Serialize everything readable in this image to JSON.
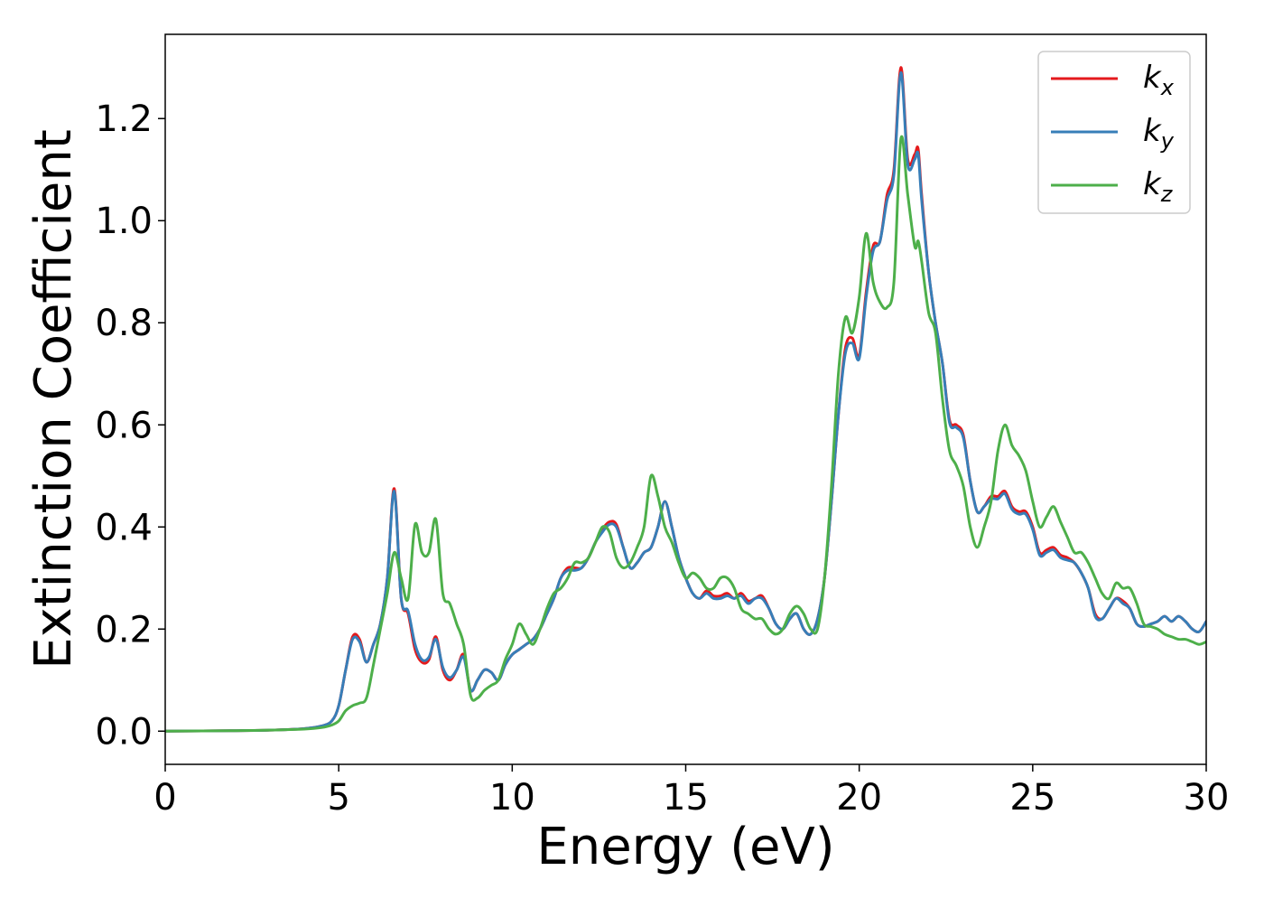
{
  "chart_data": {
    "type": "line",
    "title": "",
    "xlabel": "Energy (eV)",
    "ylabel": "Extinction Coefficient",
    "xlim": [
      0,
      30
    ],
    "ylim": [
      -0.065,
      1.365
    ],
    "xticks": [
      0,
      5,
      10,
      15,
      20,
      25,
      30
    ],
    "xtick_labels": [
      "0",
      "5",
      "10",
      "15",
      "20",
      "25",
      "30"
    ],
    "yticks": [
      0.0,
      0.2,
      0.4,
      0.6,
      0.8,
      1.0,
      1.2
    ],
    "ytick_labels": [
      "0.0",
      "0.2",
      "0.4",
      "0.6",
      "0.8",
      "1.0",
      "1.2"
    ],
    "grid": false,
    "legend_position": "top-right",
    "series": [
      {
        "name": "k_x",
        "label_base": "k",
        "label_sub": "x",
        "color": "#e41a1c",
        "x": [
          0,
          2,
          3,
          4,
          4.5,
          4.8,
          5.0,
          5.2,
          5.4,
          5.6,
          5.8,
          6.0,
          6.2,
          6.4,
          6.6,
          6.8,
          7.0,
          7.2,
          7.4,
          7.6,
          7.8,
          8.0,
          8.2,
          8.4,
          8.6,
          8.8,
          9.0,
          9.2,
          9.4,
          9.6,
          9.8,
          10.0,
          10.2,
          10.4,
          10.6,
          10.8,
          11.0,
          11.2,
          11.4,
          11.6,
          11.8,
          12.0,
          12.2,
          12.4,
          12.6,
          12.8,
          13.0,
          13.2,
          13.4,
          13.6,
          13.8,
          14.0,
          14.2,
          14.4,
          14.6,
          14.8,
          15.0,
          15.2,
          15.4,
          15.6,
          15.8,
          16.0,
          16.2,
          16.4,
          16.6,
          16.8,
          17.0,
          17.2,
          17.4,
          17.6,
          17.8,
          18.0,
          18.2,
          18.4,
          18.6,
          18.8,
          19.0,
          19.2,
          19.4,
          19.6,
          19.8,
          20.0,
          20.2,
          20.4,
          20.6,
          20.8,
          21.0,
          21.2,
          21.4,
          21.6,
          21.7,
          21.8,
          22.0,
          22.2,
          22.4,
          22.6,
          22.8,
          23.0,
          23.2,
          23.4,
          23.6,
          23.8,
          24.0,
          24.2,
          24.4,
          24.6,
          24.8,
          25.0,
          25.2,
          25.4,
          25.6,
          25.8,
          26.0,
          26.2,
          26.4,
          26.6,
          26.8,
          27.0,
          27.2,
          27.4,
          27.6,
          27.8,
          28.0,
          28.2,
          28.4,
          28.6,
          28.8,
          29.0,
          29.2,
          29.4,
          29.6,
          29.8,
          30.0
        ],
        "y": [
          0.0,
          0.001,
          0.002,
          0.005,
          0.01,
          0.02,
          0.05,
          0.12,
          0.185,
          0.18,
          0.135,
          0.17,
          0.21,
          0.3,
          0.475,
          0.26,
          0.23,
          0.16,
          0.135,
          0.14,
          0.185,
          0.12,
          0.1,
          0.12,
          0.15,
          0.08,
          0.1,
          0.12,
          0.115,
          0.1,
          0.13,
          0.15,
          0.16,
          0.17,
          0.18,
          0.2,
          0.23,
          0.26,
          0.3,
          0.32,
          0.32,
          0.32,
          0.34,
          0.37,
          0.395,
          0.41,
          0.405,
          0.36,
          0.32,
          0.33,
          0.35,
          0.36,
          0.4,
          0.45,
          0.4,
          0.34,
          0.3,
          0.27,
          0.26,
          0.275,
          0.265,
          0.265,
          0.27,
          0.26,
          0.27,
          0.255,
          0.26,
          0.265,
          0.24,
          0.21,
          0.2,
          0.22,
          0.23,
          0.2,
          0.19,
          0.22,
          0.3,
          0.45,
          0.62,
          0.75,
          0.77,
          0.735,
          0.86,
          0.95,
          0.96,
          1.05,
          1.1,
          1.3,
          1.12,
          1.13,
          1.14,
          1.05,
          0.9,
          0.8,
          0.72,
          0.61,
          0.6,
          0.58,
          0.49,
          0.43,
          0.44,
          0.46,
          0.46,
          0.47,
          0.44,
          0.43,
          0.43,
          0.4,
          0.35,
          0.355,
          0.36,
          0.345,
          0.34,
          0.33,
          0.31,
          0.28,
          0.23,
          0.22,
          0.24,
          0.26,
          0.255,
          0.24,
          0.21,
          0.205,
          0.21,
          0.215,
          0.225,
          0.215,
          0.225,
          0.215,
          0.2,
          0.195,
          0.215
        ]
      },
      {
        "name": "k_y",
        "label_base": "k",
        "label_sub": "y",
        "color": "#377eb8",
        "x": [
          0,
          2,
          3,
          4,
          4.5,
          4.8,
          5.0,
          5.2,
          5.4,
          5.6,
          5.8,
          6.0,
          6.2,
          6.4,
          6.6,
          6.8,
          7.0,
          7.2,
          7.4,
          7.6,
          7.8,
          8.0,
          8.2,
          8.4,
          8.6,
          8.8,
          9.0,
          9.2,
          9.4,
          9.6,
          9.8,
          10.0,
          10.2,
          10.4,
          10.6,
          10.8,
          11.0,
          11.2,
          11.4,
          11.6,
          11.8,
          12.0,
          12.2,
          12.4,
          12.6,
          12.8,
          13.0,
          13.2,
          13.4,
          13.6,
          13.8,
          14.0,
          14.2,
          14.4,
          14.6,
          14.8,
          15.0,
          15.2,
          15.4,
          15.6,
          15.8,
          16.0,
          16.2,
          16.4,
          16.6,
          16.8,
          17.0,
          17.2,
          17.4,
          17.6,
          17.8,
          18.0,
          18.2,
          18.4,
          18.6,
          18.8,
          19.0,
          19.2,
          19.4,
          19.6,
          19.8,
          20.0,
          20.2,
          20.4,
          20.6,
          20.8,
          21.0,
          21.2,
          21.4,
          21.6,
          21.7,
          21.8,
          22.0,
          22.2,
          22.4,
          22.6,
          22.8,
          23.0,
          23.2,
          23.4,
          23.6,
          23.8,
          24.0,
          24.2,
          24.4,
          24.6,
          24.8,
          25.0,
          25.2,
          25.4,
          25.6,
          25.8,
          26.0,
          26.2,
          26.4,
          26.6,
          26.8,
          27.0,
          27.2,
          27.4,
          27.6,
          27.8,
          28.0,
          28.2,
          28.4,
          28.6,
          28.8,
          29.0,
          29.2,
          29.4,
          29.6,
          29.8,
          30.0
        ],
        "y": [
          0.0,
          0.001,
          0.002,
          0.005,
          0.01,
          0.02,
          0.05,
          0.12,
          0.18,
          0.175,
          0.135,
          0.17,
          0.21,
          0.3,
          0.47,
          0.26,
          0.235,
          0.17,
          0.14,
          0.145,
          0.18,
          0.125,
          0.105,
          0.12,
          0.145,
          0.08,
          0.1,
          0.12,
          0.115,
          0.1,
          0.13,
          0.15,
          0.16,
          0.17,
          0.18,
          0.2,
          0.23,
          0.26,
          0.3,
          0.315,
          0.315,
          0.32,
          0.34,
          0.37,
          0.39,
          0.405,
          0.4,
          0.36,
          0.32,
          0.33,
          0.35,
          0.36,
          0.4,
          0.45,
          0.4,
          0.34,
          0.3,
          0.27,
          0.26,
          0.27,
          0.26,
          0.26,
          0.265,
          0.26,
          0.265,
          0.25,
          0.26,
          0.26,
          0.24,
          0.21,
          0.2,
          0.22,
          0.23,
          0.2,
          0.19,
          0.22,
          0.3,
          0.45,
          0.62,
          0.74,
          0.76,
          0.73,
          0.85,
          0.94,
          0.96,
          1.04,
          1.09,
          1.29,
          1.11,
          1.12,
          1.13,
          1.04,
          0.9,
          0.8,
          0.72,
          0.605,
          0.595,
          0.575,
          0.49,
          0.43,
          0.44,
          0.455,
          0.455,
          0.465,
          0.435,
          0.425,
          0.425,
          0.395,
          0.345,
          0.35,
          0.355,
          0.34,
          0.335,
          0.33,
          0.31,
          0.28,
          0.225,
          0.22,
          0.24,
          0.26,
          0.25,
          0.24,
          0.21,
          0.205,
          0.21,
          0.215,
          0.225,
          0.215,
          0.225,
          0.215,
          0.2,
          0.195,
          0.215
        ]
      },
      {
        "name": "k_z",
        "label_base": "k",
        "label_sub": "z",
        "color": "#4daf4a",
        "x": [
          0,
          2,
          3,
          4,
          4.5,
          4.8,
          5.0,
          5.2,
          5.4,
          5.6,
          5.8,
          6.0,
          6.2,
          6.4,
          6.6,
          6.8,
          7.0,
          7.2,
          7.4,
          7.6,
          7.8,
          8.0,
          8.2,
          8.4,
          8.6,
          8.8,
          9.0,
          9.2,
          9.4,
          9.6,
          9.8,
          10.0,
          10.2,
          10.4,
          10.6,
          10.8,
          11.0,
          11.2,
          11.4,
          11.6,
          11.8,
          12.0,
          12.2,
          12.4,
          12.6,
          12.8,
          13.0,
          13.2,
          13.4,
          13.6,
          13.8,
          14.0,
          14.2,
          14.4,
          14.6,
          14.8,
          15.0,
          15.2,
          15.4,
          15.6,
          15.8,
          16.0,
          16.2,
          16.4,
          16.6,
          16.8,
          17.0,
          17.2,
          17.4,
          17.6,
          17.8,
          18.0,
          18.2,
          18.4,
          18.6,
          18.8,
          19.0,
          19.2,
          19.4,
          19.6,
          19.8,
          20.0,
          20.2,
          20.4,
          20.6,
          20.8,
          21.0,
          21.2,
          21.4,
          21.6,
          21.7,
          21.8,
          22.0,
          22.2,
          22.4,
          22.6,
          22.8,
          23.0,
          23.2,
          23.4,
          23.6,
          23.8,
          24.0,
          24.2,
          24.4,
          24.6,
          24.8,
          25.0,
          25.2,
          25.4,
          25.6,
          25.8,
          26.0,
          26.2,
          26.4,
          26.6,
          26.8,
          27.0,
          27.2,
          27.4,
          27.6,
          27.8,
          28.0,
          28.2,
          28.4,
          28.6,
          28.8,
          29.0,
          29.2,
          29.4,
          29.6,
          29.8,
          30.0
        ],
        "y": [
          0.0,
          0.001,
          0.002,
          0.004,
          0.007,
          0.012,
          0.02,
          0.04,
          0.05,
          0.055,
          0.065,
          0.13,
          0.2,
          0.27,
          0.35,
          0.3,
          0.26,
          0.405,
          0.35,
          0.35,
          0.415,
          0.27,
          0.25,
          0.21,
          0.17,
          0.07,
          0.065,
          0.08,
          0.09,
          0.1,
          0.14,
          0.17,
          0.21,
          0.19,
          0.17,
          0.2,
          0.24,
          0.27,
          0.28,
          0.3,
          0.33,
          0.33,
          0.34,
          0.37,
          0.4,
          0.39,
          0.34,
          0.32,
          0.33,
          0.36,
          0.4,
          0.5,
          0.46,
          0.4,
          0.37,
          0.33,
          0.3,
          0.31,
          0.3,
          0.28,
          0.28,
          0.3,
          0.3,
          0.28,
          0.24,
          0.23,
          0.22,
          0.22,
          0.2,
          0.19,
          0.2,
          0.23,
          0.245,
          0.23,
          0.2,
          0.2,
          0.3,
          0.48,
          0.7,
          0.81,
          0.78,
          0.85,
          0.975,
          0.88,
          0.84,
          0.83,
          0.88,
          1.16,
          1.05,
          0.95,
          0.96,
          0.92,
          0.82,
          0.78,
          0.65,
          0.55,
          0.52,
          0.48,
          0.4,
          0.36,
          0.4,
          0.45,
          0.55,
          0.6,
          0.56,
          0.54,
          0.51,
          0.45,
          0.4,
          0.42,
          0.44,
          0.41,
          0.38,
          0.35,
          0.35,
          0.33,
          0.3,
          0.27,
          0.26,
          0.29,
          0.28,
          0.28,
          0.25,
          0.21,
          0.205,
          0.2,
          0.19,
          0.185,
          0.18,
          0.18,
          0.175,
          0.17,
          0.175
        ]
      }
    ]
  }
}
